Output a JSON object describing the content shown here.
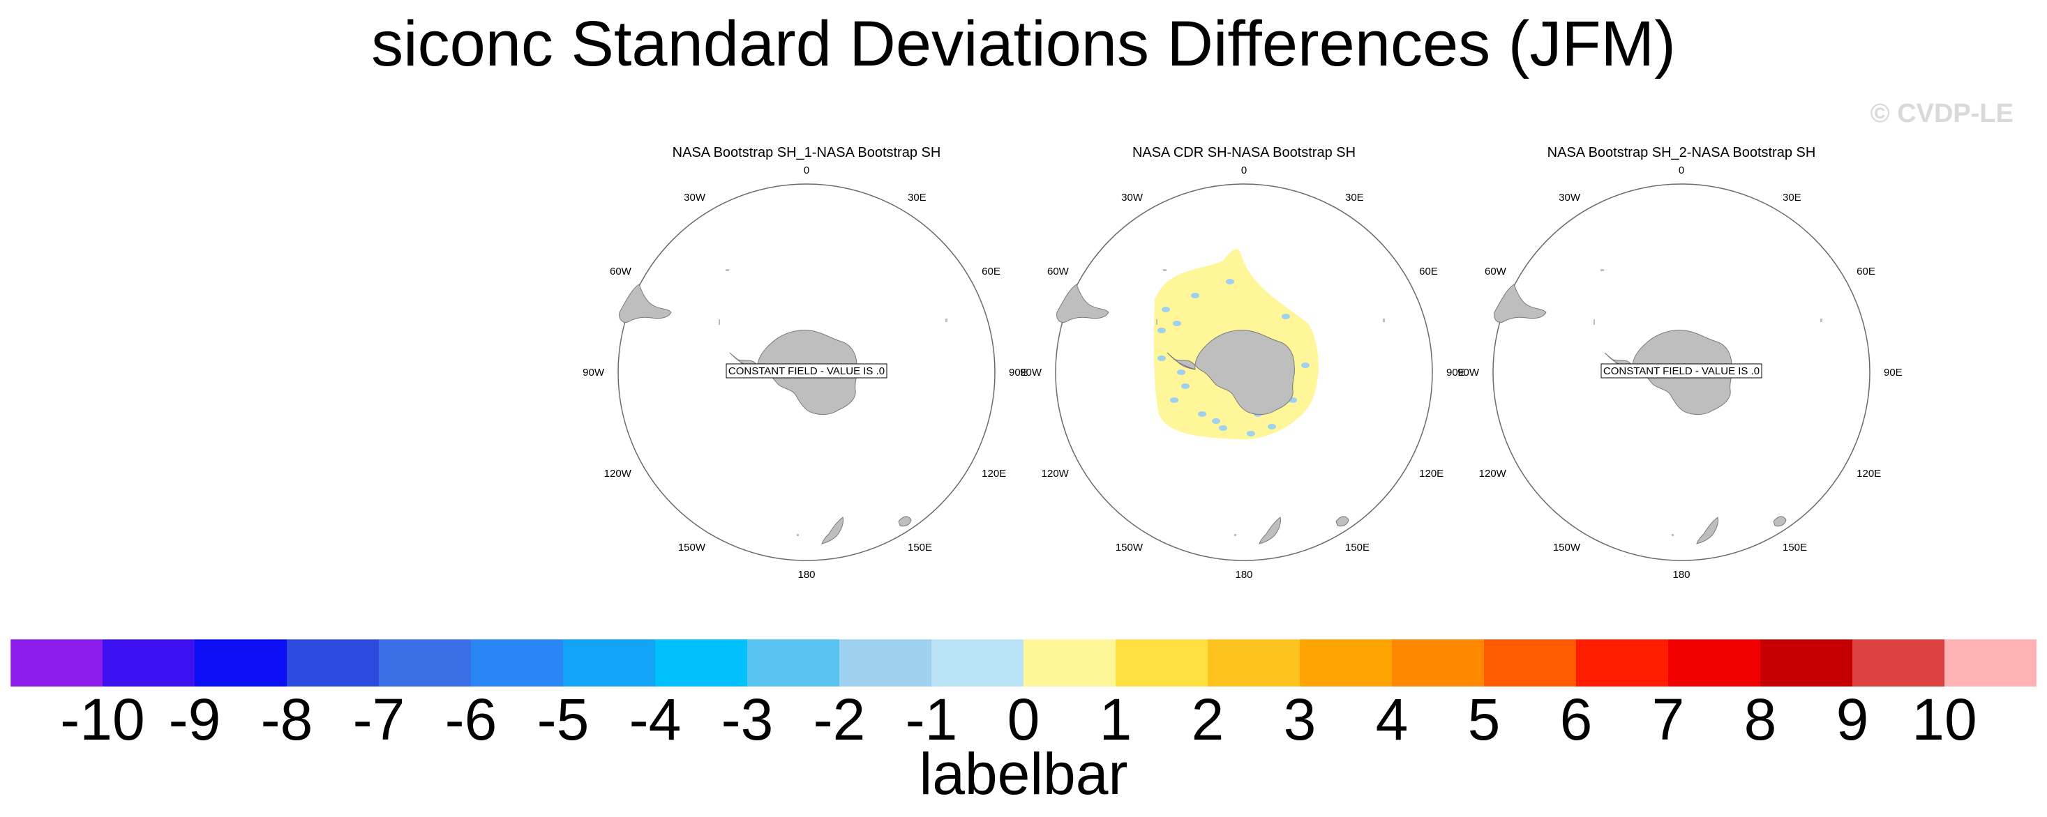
{
  "title": "siconc Standard Deviations Differences (JFM)",
  "watermark": "© CVDP-LE",
  "panels": [
    {
      "title": "NASA Bootstrap SH_1-NASA Bootstrap SH",
      "constant_label": "CONSTANT FIELD - VALUE IS .0",
      "has_field": false
    },
    {
      "title": "NASA CDR SH-NASA Bootstrap SH",
      "constant_label": "",
      "has_field": true
    },
    {
      "title": "NASA Bootstrap SH_2-NASA Bootstrap SH",
      "constant_label": "CONSTANT FIELD - VALUE IS .0",
      "has_field": false
    }
  ],
  "longitude_labels": [
    "0",
    "30E",
    "60E",
    "90E",
    "120E",
    "150E",
    "180",
    "150W",
    "120W",
    "90W",
    "60W",
    "30W"
  ],
  "chart_data": {
    "type": "heatmap",
    "projection": "south polar stereographic",
    "variable": "siconc",
    "season": "JFM",
    "panels": [
      {
        "name": "NASA Bootstrap SH_1-NASA Bootstrap SH",
        "constant_value": 0
      },
      {
        "name": "NASA CDR SH-NASA Bootstrap SH",
        "dominant_range": [
          0,
          1
        ],
        "minor_range": [
          -2,
          -1
        ]
      },
      {
        "name": "NASA Bootstrap SH_2-NASA Bootstrap SH",
        "constant_value": 0
      }
    ],
    "labelbar": {
      "caption": "labelbar",
      "tick_labels": [
        "-10",
        "-9",
        "-8",
        "-7",
        "-6",
        "-5",
        "-4",
        "-3",
        "-2",
        "-1",
        "0",
        "1",
        "2",
        "3",
        "4",
        "5",
        "6",
        "7",
        "8",
        "9",
        "10"
      ],
      "levels": [
        -10,
        -9,
        -8,
        -7,
        -6,
        -5,
        -4,
        -3,
        -2,
        -1,
        0,
        1,
        2,
        3,
        4,
        5,
        6,
        7,
        8,
        9,
        10
      ],
      "colors": [
        "#8a1be8",
        "#3c10f0",
        "#0b0ef5",
        "#2e4be0",
        "#3a6fe8",
        "#2a86f5",
        "#12a3f7",
        "#00c1fb",
        "#5ac4f0",
        "#9dd1ef",
        "#b9e2f6",
        "#fff69a",
        "#fee140",
        "#fec31f",
        "#ffa402",
        "#ff8800",
        "#ff5a00",
        "#ff1e00",
        "#f00000",
        "#c60002",
        "#dc4040",
        "#feb2b2"
      ]
    }
  }
}
